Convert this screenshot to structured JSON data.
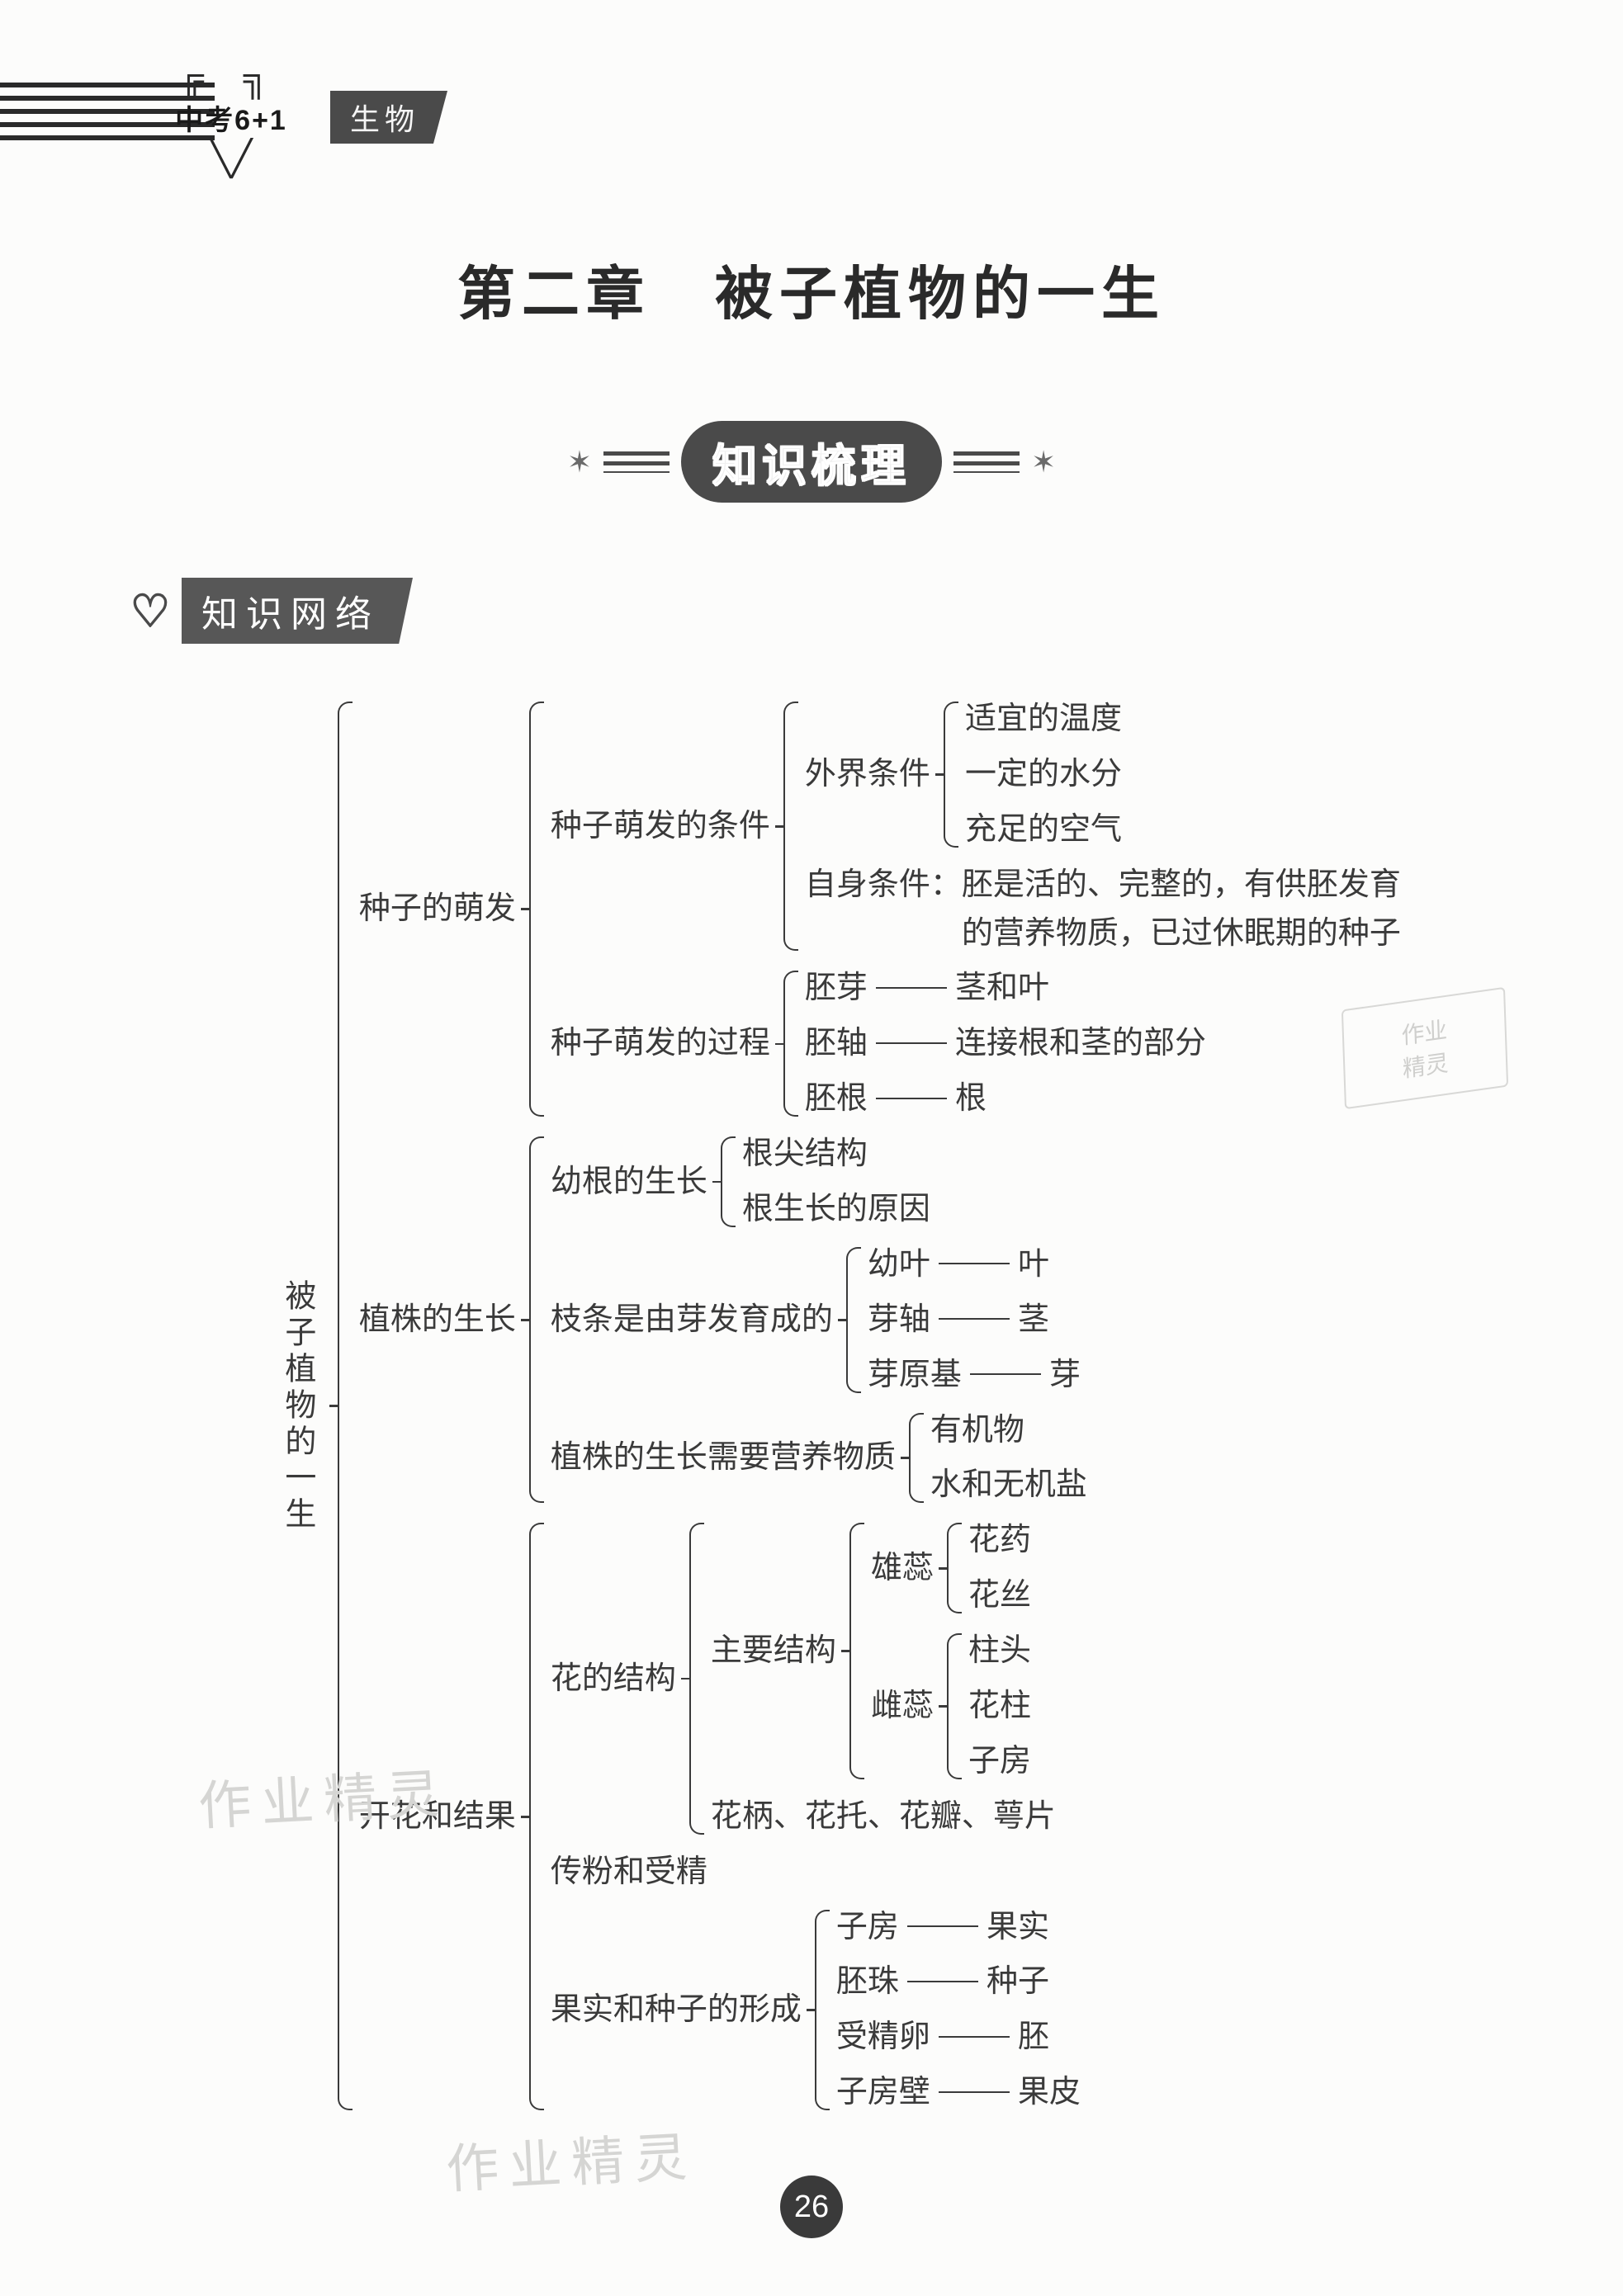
{
  "header": {
    "series": "中考6+1",
    "subject": "生物"
  },
  "chapter_title": "第二章　被子植物的一生",
  "ribbon": "知识梳理",
  "section_tag": "知识网络",
  "page_number": "26",
  "watermarks": {
    "wm1": "作业精灵",
    "wm2": "作业精灵",
    "stamp_l1": "作业",
    "stamp_l2": "精灵"
  },
  "diagram": {
    "type": "tree",
    "font_size_pt": 28,
    "text_color": "#3a3a3a",
    "brace_color": "#3a3a3a",
    "background_color": "#fcfcfb",
    "root": {
      "label": "被子植物的一生",
      "vertical": true,
      "children": [
        {
          "label": "种子的萌发",
          "children": [
            {
              "label": "种子萌发的条件",
              "children": [
                {
                  "label": "外界条件",
                  "children": [
                    {
                      "leaf": "适宜的温度"
                    },
                    {
                      "leaf": "一定的水分"
                    },
                    {
                      "leaf": "充足的空气"
                    }
                  ]
                },
                {
                  "leaf_multiline": "自身条件：胚是活的、完整的，有供胚发育\n　　　　　的营养物质，已过休眠期的种子"
                }
              ]
            },
            {
              "label": "种子萌发的过程",
              "children": [
                {
                  "pair": [
                    "胚芽",
                    "茎和叶"
                  ]
                },
                {
                  "pair": [
                    "胚轴",
                    "连接根和茎的部分"
                  ]
                },
                {
                  "pair": [
                    "胚根",
                    "根"
                  ]
                }
              ]
            }
          ]
        },
        {
          "label": "植株的生长",
          "children": [
            {
              "label": "幼根的生长",
              "children": [
                {
                  "leaf": "根尖结构"
                },
                {
                  "leaf": "根生长的原因"
                }
              ]
            },
            {
              "label": "枝条是由芽发育成的",
              "children": [
                {
                  "pair": [
                    "幼叶",
                    "叶"
                  ]
                },
                {
                  "pair": [
                    "芽轴",
                    "茎"
                  ]
                },
                {
                  "pair": [
                    "芽原基",
                    "芽"
                  ]
                }
              ]
            },
            {
              "label": "植株的生长需要营养物质",
              "children": [
                {
                  "leaf": "有机物"
                },
                {
                  "leaf": "水和无机盐"
                }
              ]
            }
          ]
        },
        {
          "label": "开花和结果",
          "children": [
            {
              "label": "花的结构",
              "children": [
                {
                  "label": "主要结构",
                  "children": [
                    {
                      "label": "雄蕊",
                      "children": [
                        {
                          "leaf": "花药"
                        },
                        {
                          "leaf": "花丝"
                        }
                      ]
                    },
                    {
                      "label": "雌蕊",
                      "children": [
                        {
                          "leaf": "柱头"
                        },
                        {
                          "leaf": "花柱"
                        },
                        {
                          "leaf": "子房"
                        }
                      ]
                    }
                  ]
                },
                {
                  "leaf": "花柄、花托、花瓣、萼片"
                }
              ]
            },
            {
              "leaf": "传粉和受精"
            },
            {
              "label": "果实和种子的形成",
              "children": [
                {
                  "pair": [
                    "子房",
                    "果实"
                  ]
                },
                {
                  "pair": [
                    "胚珠",
                    "种子"
                  ]
                },
                {
                  "pair": [
                    "受精卵",
                    "胚"
                  ]
                },
                {
                  "pair": [
                    "子房壁",
                    "果皮"
                  ]
                }
              ]
            }
          ]
        }
      ]
    }
  }
}
